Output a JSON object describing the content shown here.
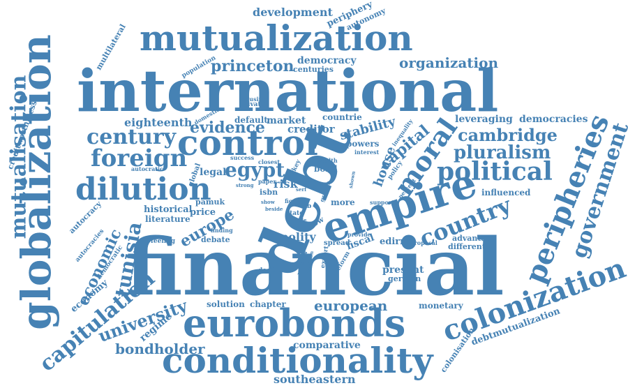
{
  "colors": {
    "word": "#4682b4",
    "background": "#ffffff"
  },
  "words": [
    {
      "id": "financial",
      "text": "financial"
    },
    {
      "id": "international",
      "text": "international"
    },
    {
      "id": "debt",
      "text": "debt"
    },
    {
      "id": "mutualization",
      "text": "mutualization"
    },
    {
      "id": "globalization",
      "text": "globalization"
    },
    {
      "id": "eurobonds",
      "text": "eurobonds"
    },
    {
      "id": "conditionality",
      "text": "conditionality"
    },
    {
      "id": "control",
      "text": "control"
    },
    {
      "id": "empire",
      "text": "empire"
    },
    {
      "id": "dilution",
      "text": "dilution"
    },
    {
      "id": "colonization",
      "text": "colonization"
    },
    {
      "id": "peripheries",
      "text": "peripheries"
    },
    {
      "id": "political",
      "text": "political"
    },
    {
      "id": "moral",
      "text": "moral"
    },
    {
      "id": "mutualisation",
      "text": "mutualisation"
    },
    {
      "id": "government",
      "text": "government"
    },
    {
      "id": "foreign",
      "text": "foreign"
    },
    {
      "id": "century",
      "text": "century"
    },
    {
      "id": "country",
      "text": "country"
    },
    {
      "id": "capitulation",
      "text": "capitulation"
    },
    {
      "id": "pluralism",
      "text": "pluralism"
    },
    {
      "id": "cambridge",
      "text": "cambridge"
    },
    {
      "id": "egypt",
      "text": "egypt"
    },
    {
      "id": "evidence",
      "text": "evidence"
    },
    {
      "id": "princeton",
      "text": "princeton"
    },
    {
      "id": "organization",
      "text": "organization"
    },
    {
      "id": "university",
      "text": "university"
    },
    {
      "id": "tunisia",
      "text": "tunisia"
    },
    {
      "id": "economic",
      "text": "economic"
    },
    {
      "id": "bondholder",
      "text": "bondholder"
    },
    {
      "id": "european",
      "text": "european"
    },
    {
      "id": "europe",
      "text": "europe"
    },
    {
      "id": "capital",
      "text": "capital"
    },
    {
      "id": "stability",
      "text": "stability"
    },
    {
      "id": "house",
      "text": "house"
    },
    {
      "id": "development",
      "text": "development"
    },
    {
      "id": "southeastern",
      "text": "southeastern"
    },
    {
      "id": "eighteenth",
      "text": "eighteenth"
    },
    {
      "id": "democracies",
      "text": "democracies"
    },
    {
      "id": "leveraging",
      "text": "leveraging"
    },
    {
      "id": "democracy",
      "text": "democracy"
    },
    {
      "id": "centuries",
      "text": "centuries"
    },
    {
      "id": "periphery",
      "text": "periphery"
    },
    {
      "id": "autonomy",
      "text": "autonomy"
    },
    {
      "id": "multilateral",
      "text": "multilateral"
    },
    {
      "id": "creditworthiness",
      "text": "creditworthiness"
    },
    {
      "id": "population",
      "text": "population"
    },
    {
      "id": "market",
      "text": "market"
    },
    {
      "id": "default",
      "text": "default"
    },
    {
      "id": "creditor",
      "text": "creditor"
    },
    {
      "id": "countrie",
      "text": "countrie"
    },
    {
      "id": "historical",
      "text": "historical"
    },
    {
      "id": "literature",
      "text": "literature"
    },
    {
      "id": "price",
      "text": "price"
    },
    {
      "id": "legal",
      "text": "legal"
    },
    {
      "id": "risk",
      "text": "risk"
    },
    {
      "id": "polity",
      "text": "polity"
    },
    {
      "id": "fiscal",
      "text": "fiscal"
    },
    {
      "id": "edirne",
      "text": "edirne"
    },
    {
      "id": "present",
      "text": "present"
    },
    {
      "id": "german",
      "text": "german"
    },
    {
      "id": "comparative",
      "text": "comparative"
    },
    {
      "id": "solution",
      "text": "solution"
    },
    {
      "id": "chapter",
      "text": "chapter"
    },
    {
      "id": "regime",
      "text": "regime"
    },
    {
      "id": "economy",
      "text": "economy"
    },
    {
      "id": "autocracy",
      "text": "autocracy"
    },
    {
      "id": "autocracies",
      "text": "autocracies"
    },
    {
      "id": "democratic",
      "text": "democratic"
    },
    {
      "id": "feeling",
      "text": "feeling"
    },
    {
      "id": "debate",
      "text": "debate"
    },
    {
      "id": "monetary",
      "text": "monetary"
    },
    {
      "id": "advantage",
      "text": "advantage"
    },
    {
      "id": "different",
      "text": "different"
    },
    {
      "id": "influenced",
      "text": "influenced"
    },
    {
      "id": "debtmutualization",
      "text": "debtmutualization"
    },
    {
      "id": "colonisation",
      "text": "colonisation"
    },
    {
      "id": "powers",
      "text": "powers"
    },
    {
      "id": "bond",
      "text": "bond"
    },
    {
      "id": "pamuk",
      "text": "pamuk"
    },
    {
      "id": "isbn",
      "text": "isbn"
    },
    {
      "id": "more",
      "text": "more"
    },
    {
      "id": "spread",
      "text": "spread"
    },
    {
      "id": "decision",
      "text": "decision"
    },
    {
      "id": "review",
      "text": "review"
    },
    {
      "id": "private",
      "text": "private"
    },
    {
      "id": "housing",
      "text": "housing"
    },
    {
      "id": "global",
      "text": "global"
    },
    {
      "id": "autocratic",
      "text": "autocratic"
    },
    {
      "id": "success",
      "text": "success"
    },
    {
      "id": "closest",
      "text": "closest"
    },
    {
      "id": "paper",
      "text": "paper"
    },
    {
      "id": "turkey",
      "text": "turkey"
    },
    {
      "id": "flow",
      "text": "flow"
    },
    {
      "id": "state",
      "text": "state"
    },
    {
      "id": "tab",
      "text": "tab"
    },
    {
      "id": "finding",
      "text": "finding"
    },
    {
      "id": "export",
      "text": "export"
    },
    {
      "id": "reform",
      "text": "reform"
    },
    {
      "id": "provide",
      "text": "provide"
    },
    {
      "id": "proposal",
      "text": "proposal"
    },
    {
      "id": "inequality",
      "text": "inequality"
    },
    {
      "id": "policy",
      "text": "policy"
    },
    {
      "id": "interest",
      "text": "interest"
    },
    {
      "id": "wealth",
      "text": "wealth"
    },
    {
      "id": "percent",
      "text": "percent"
    },
    {
      "id": "support",
      "text": "support"
    },
    {
      "id": "domestic",
      "text": "domestic"
    },
    {
      "id": "fig",
      "text": "fig"
    },
    {
      "id": "strong",
      "text": "strong"
    },
    {
      "id": "show",
      "text": "show"
    },
    {
      "id": "role",
      "text": "role"
    },
    {
      "id": "growth",
      "text": "growth"
    },
    {
      "id": "serf",
      "text": "serf"
    },
    {
      "id": "beside",
      "text": "beside"
    },
    {
      "id": "shown",
      "text": "shown"
    },
    {
      "id": "position",
      "text": "position"
    }
  ]
}
